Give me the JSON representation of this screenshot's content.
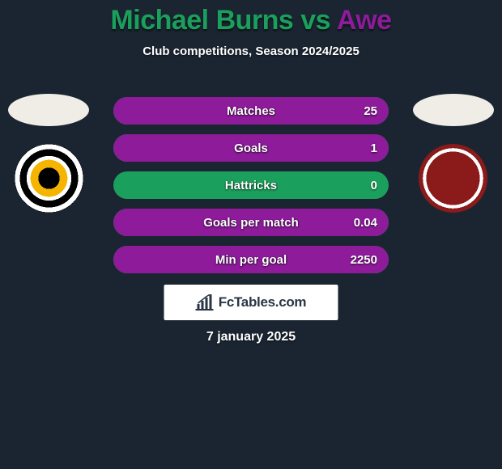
{
  "title": {
    "player1": "Michael Burns",
    "vs": " vs ",
    "player2": "Awe",
    "color1": "#1aa05c",
    "color2": "#8d1b9a"
  },
  "subtitle": "Club competitions, Season 2024/2025",
  "stats": {
    "bar_base_color": "#1aa05c",
    "bar_fill_color": "#8d1b9a",
    "rows": [
      {
        "label": "Matches",
        "value": "25",
        "fill_pct": 100
      },
      {
        "label": "Goals",
        "value": "1",
        "fill_pct": 100
      },
      {
        "label": "Hattricks",
        "value": "0",
        "fill_pct": 0
      },
      {
        "label": "Goals per match",
        "value": "0.04",
        "fill_pct": 100
      },
      {
        "label": "Min per goal",
        "value": "2250",
        "fill_pct": 100
      }
    ]
  },
  "brand": "FcTables.com",
  "date": "7 january 2025",
  "colors": {
    "background": "#1a2531"
  }
}
